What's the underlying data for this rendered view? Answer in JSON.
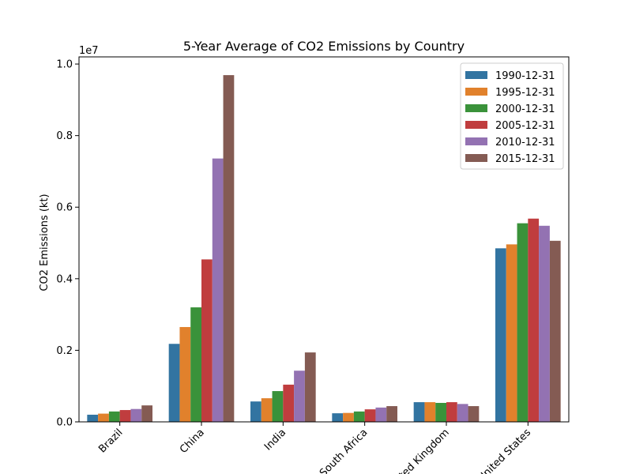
{
  "chart_data": {
    "type": "bar",
    "title": "5-Year Average of CO2 Emissions by Country",
    "xlabel": "",
    "ylabel": "CO2 Emissions (kt)",
    "y_scale_label": "1e7",
    "ylim": [
      0,
      10200000
    ],
    "yticks": [
      0,
      2000000,
      4000000,
      6000000,
      8000000,
      10000000
    ],
    "ytick_labels": [
      "0.0",
      "0.2",
      "0.4",
      "0.6",
      "0.8",
      "1.0"
    ],
    "categories": [
      "Brazil",
      "China",
      "India",
      "South Africa",
      "United Kingdom",
      "United States"
    ],
    "legend_position": "top-right",
    "grid": false,
    "series": [
      {
        "name": "1990-12-31",
        "color": "#3274a1",
        "values": [
          200000,
          2180000,
          570000,
          240000,
          550000,
          4850000
        ]
      },
      {
        "name": "1995-12-31",
        "color": "#e1812c",
        "values": [
          230000,
          2650000,
          660000,
          250000,
          550000,
          4960000
        ]
      },
      {
        "name": "2000-12-31",
        "color": "#3a923a",
        "values": [
          290000,
          3200000,
          860000,
          290000,
          530000,
          5550000
        ]
      },
      {
        "name": "2005-12-31",
        "color": "#c03d3e",
        "values": [
          330000,
          4540000,
          1040000,
          350000,
          550000,
          5680000
        ]
      },
      {
        "name": "2010-12-31",
        "color": "#9372b2",
        "values": [
          360000,
          7360000,
          1430000,
          400000,
          500000,
          5480000
        ]
      },
      {
        "name": "2015-12-31",
        "color": "#845b53",
        "values": [
          460000,
          9690000,
          1940000,
          440000,
          440000,
          5060000
        ]
      }
    ]
  }
}
